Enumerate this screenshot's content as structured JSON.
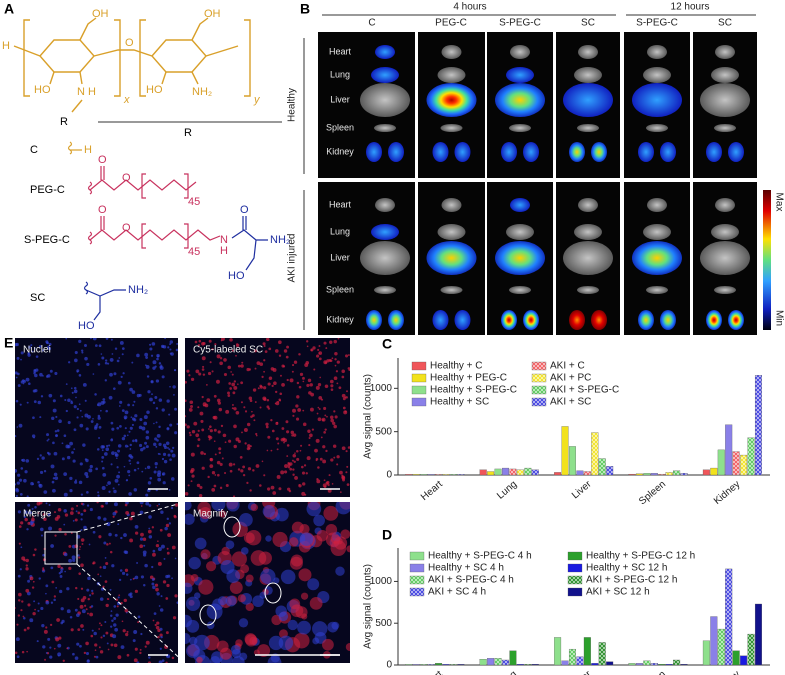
{
  "panel_a": {
    "letter": "A",
    "structure": {
      "h": "H",
      "oh_left": "OH",
      "ho_left": "HO",
      "n": "N",
      "nh_h": "H",
      "r": "R",
      "x": "x",
      "o_link": "O",
      "oh_right": "OH",
      "ho_right": "HO",
      "nh2": "NH₂",
      "y": "y"
    },
    "r_header": "R",
    "rows": [
      {
        "name": "C",
        "h": "H"
      },
      {
        "name": "PEG-C",
        "o": "O",
        "o2": "O",
        "n": "45"
      },
      {
        "name": "S-PEG-C",
        "o": "O",
        "o2": "O",
        "n": "45",
        "nh_n": "N",
        "nh_h": "H",
        "o3": "O",
        "nh2": "NH₂",
        "ho": "HO"
      },
      {
        "name": "SC",
        "nh2": "NH₂",
        "ho": "HO"
      }
    ]
  },
  "panel_b": {
    "letter": "B",
    "time_4": "4 hours",
    "time_12": "12 hours",
    "columns": [
      "C",
      "PEG-C",
      "S-PEG-C",
      "SC",
      "S-PEG-C",
      "SC"
    ],
    "groups": [
      "Healthy",
      "AKI injured"
    ],
    "organs": [
      "Heart",
      "Lung",
      "Liver",
      "Spleen",
      "Kidney"
    ],
    "scale_max": "Max",
    "scale_min": "Min"
  },
  "panel_e": {
    "letter": "E",
    "images": [
      "Nuclei",
      "Cy5-labeled SC",
      "Merge",
      "Magnify"
    ]
  },
  "chart_data": [
    {
      "type": "bar",
      "letter": "C",
      "y_label": "Avg signal (counts)",
      "categories": [
        "Heart",
        "Lung",
        "Liver",
        "Spleen",
        "Kidney"
      ],
      "ylim": [
        0,
        1350
      ],
      "yticks": [
        0,
        500,
        1000
      ],
      "series": [
        {
          "name": "Healthy + C",
          "color": "#f0565a",
          "hatch": false,
          "values": [
            8,
            60,
            30,
            10,
            60
          ]
        },
        {
          "name": "Healthy + PEG-C",
          "color": "#f2e21c",
          "hatch": false,
          "values": [
            8,
            40,
            560,
            15,
            80
          ]
        },
        {
          "name": "Healthy + S-PEG-C",
          "color": "#8ee08c",
          "hatch": false,
          "values": [
            8,
            70,
            330,
            20,
            290
          ]
        },
        {
          "name": "Healthy + SC",
          "color": "#8a80e8",
          "hatch": false,
          "values": [
            8,
            80,
            50,
            20,
            580
          ]
        },
        {
          "name": "AKI + C",
          "color": "#f0565a",
          "hatch": true,
          "values": [
            8,
            70,
            40,
            10,
            270
          ]
        },
        {
          "name": "AKI + PC",
          "color": "#f2e21c",
          "hatch": true,
          "values": [
            8,
            60,
            490,
            30,
            230
          ]
        },
        {
          "name": "AKI + S-PEG-C",
          "color": "#55c855",
          "hatch": true,
          "values": [
            8,
            80,
            190,
            50,
            430
          ]
        },
        {
          "name": "AKI + SC",
          "color": "#3a3ae0",
          "hatch": true,
          "values": [
            8,
            60,
            100,
            20,
            1150
          ]
        }
      ]
    },
    {
      "type": "bar",
      "letter": "D",
      "y_label": "Avg signal (counts)",
      "categories": [
        "Heart",
        "Lung",
        "Liver",
        "Spleen",
        "Kidney"
      ],
      "ylim": [
        0,
        1400
      ],
      "yticks": [
        0,
        500,
        1000
      ],
      "series": [
        {
          "name": "Healthy + S-PEG-C 4 h",
          "color": "#8ee08c",
          "hatch": false,
          "values": [
            8,
            70,
            330,
            20,
            290
          ]
        },
        {
          "name": "Healthy + SC 4 h",
          "color": "#8a80e8",
          "hatch": false,
          "values": [
            8,
            80,
            50,
            20,
            580
          ]
        },
        {
          "name": "AKI + S-PEG-C 4 h",
          "color": "#55c855",
          "hatch": true,
          "values": [
            8,
            80,
            190,
            50,
            430
          ]
        },
        {
          "name": "AKI + SC 4 h",
          "color": "#3a3ae0",
          "hatch": true,
          "values": [
            8,
            60,
            100,
            20,
            1150
          ]
        },
        {
          "name": "Healthy + S-PEG-C 12 h",
          "color": "#2ca02c",
          "hatch": false,
          "values": [
            20,
            170,
            330,
            10,
            170
          ]
        },
        {
          "name": "Healthy + SC 12 h",
          "color": "#1a1ae0",
          "hatch": false,
          "values": [
            8,
            10,
            20,
            10,
            110
          ]
        },
        {
          "name": "AKI + S-PEG-C 12 h",
          "color": "#1f8a1f",
          "hatch": true,
          "values": [
            8,
            10,
            270,
            60,
            370
          ]
        },
        {
          "name": "AKI + SC 12 h",
          "color": "#12128c",
          "hatch": false,
          "values": [
            8,
            10,
            40,
            10,
            730
          ]
        }
      ]
    }
  ]
}
